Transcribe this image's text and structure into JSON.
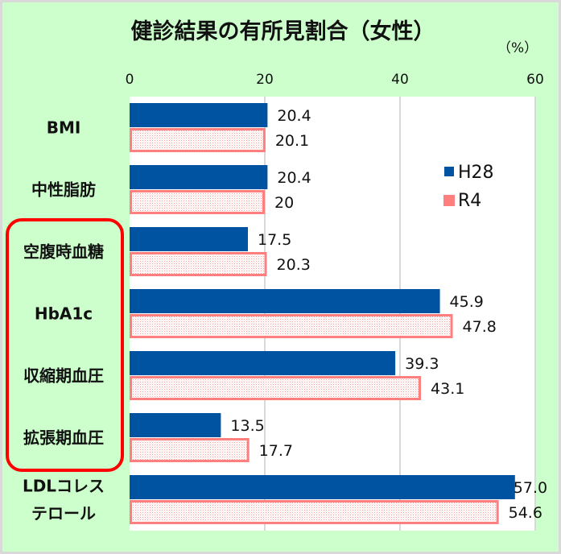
{
  "chart_data": {
    "type": "bar",
    "orientation": "horizontal",
    "title": "健診結果の有所見割合（女性）",
    "unit_label": "（%）",
    "categories": [
      "BMI",
      "中性脂肪",
      "空腹時血糖",
      "HbA1c",
      "収縮期血圧",
      "拡張期血圧",
      "LDLコレステロール"
    ],
    "category_lines": [
      [
        "BMI"
      ],
      [
        "中性脂肪"
      ],
      [
        "空腹時血糖"
      ],
      [
        "HbA1c"
      ],
      [
        "収縮期血圧"
      ],
      [
        "拡張期血圧"
      ],
      [
        "LDLコレス",
        "テロール"
      ]
    ],
    "series": [
      {
        "name": "H28",
        "values": [
          20.4,
          20.4,
          17.5,
          45.9,
          39.3,
          13.5,
          57.0
        ],
        "labels": [
          "20.4",
          "20.4",
          "17.5",
          "45.9",
          "39.3",
          "13.5",
          "57.0"
        ],
        "color": "#0053a0"
      },
      {
        "name": "R4",
        "values": [
          20.1,
          20,
          20.3,
          47.8,
          43.1,
          17.7,
          54.6
        ],
        "labels": [
          "20.1",
          "20",
          "20.3",
          "47.8",
          "43.1",
          "17.7",
          "54.6"
        ],
        "color": "#ff7f7f",
        "pattern": "dotted"
      }
    ],
    "xlim": [
      0,
      60
    ],
    "xticks": [
      "0",
      "20",
      "40",
      "60"
    ],
    "grid": true,
    "legend_position": "right, inside upper area",
    "highlight_categories": [
      "空腹時血糖",
      "HbA1c",
      "収縮期血圧",
      "拡張期血圧"
    ],
    "highlight_color": "#ff0000",
    "background": "#ccffcc"
  }
}
